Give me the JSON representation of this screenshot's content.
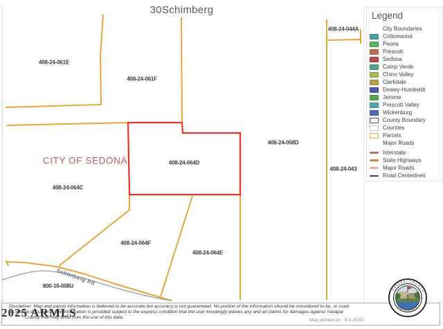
{
  "title": "30Schimberg",
  "map": {
    "city_label": "CITY OF SEDONA",
    "road_label": "Schimberg Rd",
    "selected_parcel": "408-24-064D",
    "parcels": [
      {
        "id": "408-24-061E"
      },
      {
        "id": "408-24-061F"
      },
      {
        "id": "408-24-044A"
      },
      {
        "id": "408-24-058D"
      },
      {
        "id": "408-24-043"
      },
      {
        "id": "408-24-064D"
      },
      {
        "id": "408-24-064C"
      },
      {
        "id": "408-24-064F"
      },
      {
        "id": "408-24-064E"
      },
      {
        "id": "800-16-008U"
      }
    ]
  },
  "legend": {
    "title": "Legend",
    "items": [
      {
        "label": "City Boundaries",
        "swatch": "none"
      },
      {
        "label": "Cottonwood",
        "swatch": "fill",
        "color": "#4FA0A1"
      },
      {
        "label": "Peoria",
        "swatch": "fill",
        "color": "#5CB15C"
      },
      {
        "label": "Prescott",
        "swatch": "fill",
        "color": "#BE7150"
      },
      {
        "label": "Sedona",
        "swatch": "fill",
        "color": "#B74B4B"
      },
      {
        "label": "Camp Verde",
        "swatch": "fill",
        "color": "#4CA687"
      },
      {
        "label": "Chino Valley",
        "swatch": "fill",
        "color": "#A4BA59"
      },
      {
        "label": "Clarkdale",
        "swatch": "fill",
        "color": "#B3A14B"
      },
      {
        "label": "Dewey-Humboldt",
        "swatch": "fill",
        "color": "#4C5BAB"
      },
      {
        "label": "Jerome",
        "swatch": "fill",
        "color": "#55A94E"
      },
      {
        "label": "Prescott Valley",
        "swatch": "fill",
        "color": "#4CA9AC"
      },
      {
        "label": "Wickenburg",
        "swatch": "fill",
        "color": "#4C6BB5"
      },
      {
        "label": "County Boundary",
        "swatch": "outline",
        "color": "#4A4A4A"
      },
      {
        "label": "Counties",
        "swatch": "outline",
        "color": "#C9C9C9"
      },
      {
        "label": "Parcels",
        "swatch": "outline",
        "color": "#E9A43C"
      },
      {
        "label": "Major Roads",
        "swatch": "none"
      },
      {
        "label": "Interstate",
        "swatch": "line",
        "color": "#C26A4A",
        "line_weight": 3.5,
        "gap_before": true
      },
      {
        "label": "State Highways",
        "swatch": "line",
        "color": "#DC7E33",
        "line_weight": 2.5
      },
      {
        "label": "Major Roads",
        "swatch": "line",
        "color": "#EEB09A",
        "line_weight": 2.5
      },
      {
        "label": "Road Centerlines",
        "swatch": "line",
        "color": "#3F3F3F",
        "line_weight": 2
      }
    ]
  },
  "footer": {
    "disclaimer_line1": "Disclaimer: Map and parcel information is believed to be accurate but accuracy is not guaranteed. No portion of the information should be considered to be, or used",
    "disclaimer_line2": "as a legal document. The information is provided subject to the express condition that the user knowingly waives any and all claims for damages against Yavapai",
    "disclaimer_line3": "County that may arise from the use of this data.",
    "printed": "Map printed on : 9.3.2025",
    "watermark": "2025 ARMLS"
  },
  "seal": {
    "top_text": "YAVAPAI COUNTY",
    "bottom_text": "ARIZONA"
  },
  "colors": {
    "parcel_line": "#E9A43C",
    "selected_parcel_outline": "#E63323",
    "city_text": "#B65F62"
  }
}
